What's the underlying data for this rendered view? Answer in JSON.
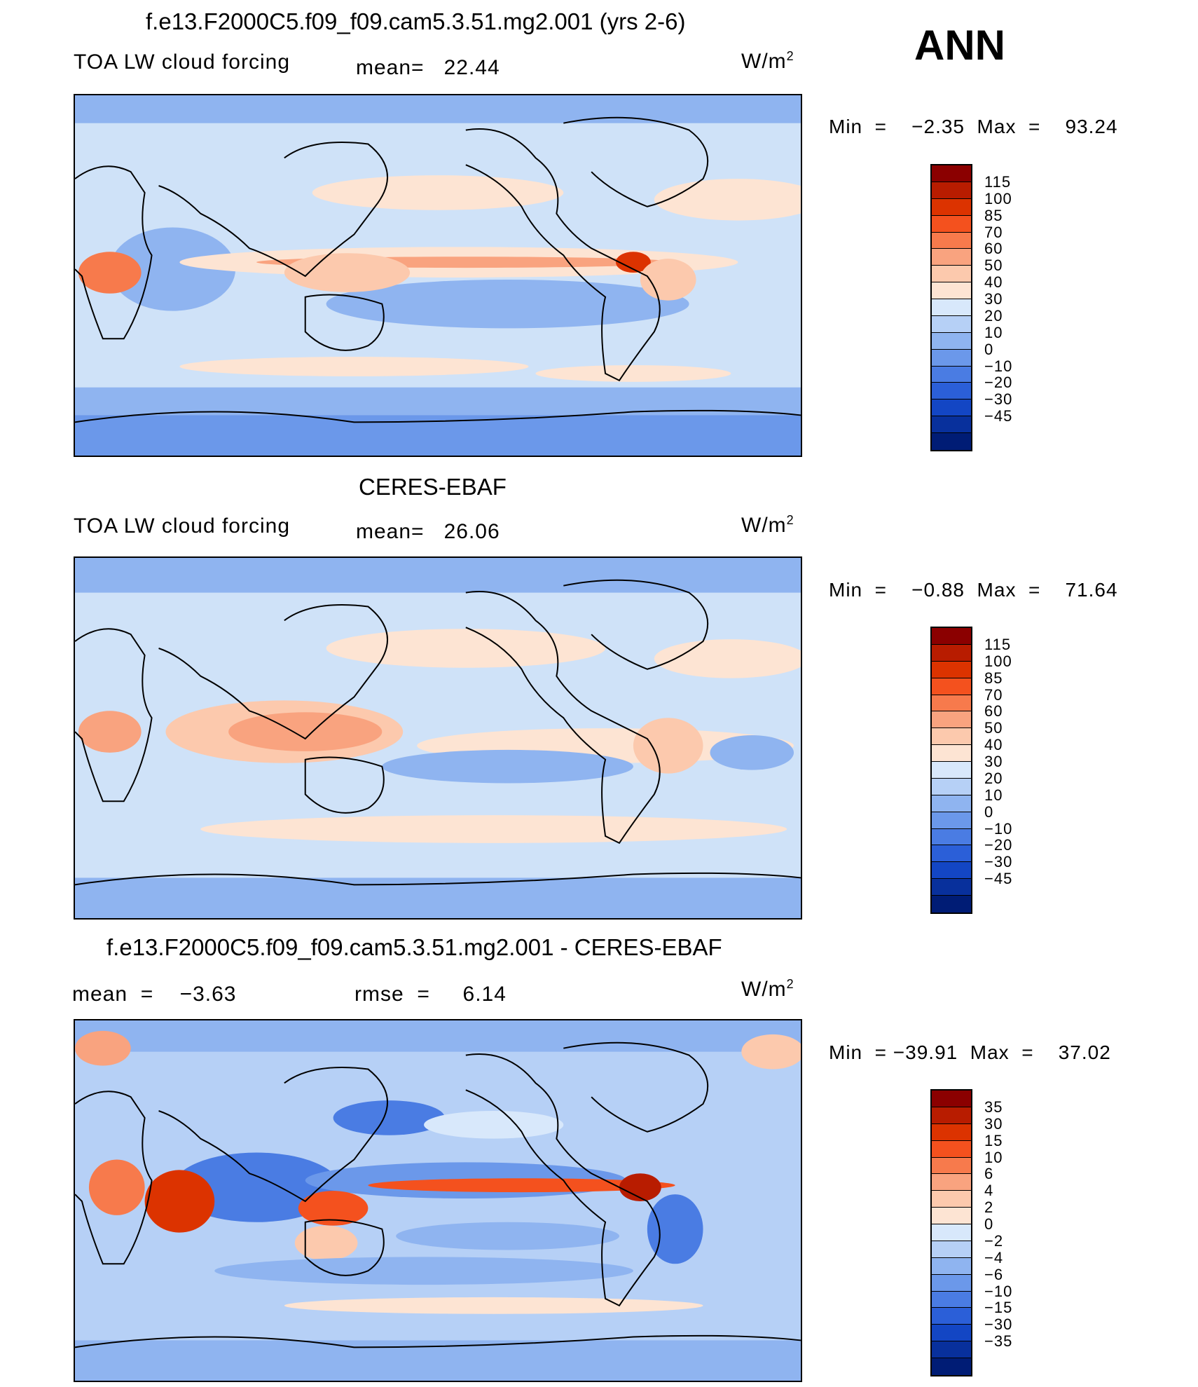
{
  "season": "ANN",
  "unit_prefix": "W/m",
  "unit_sup": "2",
  "panels": [
    {
      "title": "f.e13.F2000C5.f09_f09.cam5.3.51.mg2.001 (yrs 2-6)",
      "left_label": "TOA LW cloud forcing",
      "mid_label": "mean=   22.44",
      "minmax": "Min  =    −2.35  Max  =    93.24",
      "levels": [
        "115",
        "100",
        "85",
        "70",
        "60",
        "50",
        "40",
        "30",
        "20",
        "10",
        "0",
        "−10",
        "−20",
        "−30",
        "−45"
      ],
      "colors": [
        "#8b0000",
        "#b81c00",
        "#dc3300",
        "#f4511e",
        "#f77a4c",
        "#f9a37f",
        "#fcc9ad",
        "#fde4d3",
        "#d8e8fb",
        "#b6d0f6",
        "#8fb4f0",
        "#6b98ea",
        "#4a7ce3",
        "#2b5fd8",
        "#1346c4",
        "#08309c",
        "#001c75"
      ]
    },
    {
      "title": "CERES-EBAF",
      "left_label": "TOA LW cloud forcing",
      "mid_label": "mean=   26.06",
      "minmax": "Min  =    −0.88  Max  =    71.64",
      "levels": [
        "115",
        "100",
        "85",
        "70",
        "60",
        "50",
        "40",
        "30",
        "20",
        "10",
        "0",
        "−10",
        "−20",
        "−30",
        "−45"
      ],
      "colors": [
        "#8b0000",
        "#b81c00",
        "#dc3300",
        "#f4511e",
        "#f77a4c",
        "#f9a37f",
        "#fcc9ad",
        "#fde4d3",
        "#d8e8fb",
        "#b6d0f6",
        "#8fb4f0",
        "#6b98ea",
        "#4a7ce3",
        "#2b5fd8",
        "#1346c4",
        "#08309c",
        "#001c75"
      ]
    },
    {
      "title": "f.e13.F2000C5.f09_f09.cam5.3.51.mg2.001 - CERES-EBAF",
      "left_label": "mean  =    −3.63",
      "mid_label": "rmse  =     6.14",
      "minmax": "Min  = −39.91  Max  =    37.02",
      "levels": [
        "35",
        "30",
        "15",
        "10",
        "6",
        "4",
        "2",
        "0",
        "−2",
        "−4",
        "−6",
        "−10",
        "−15",
        "−30",
        "−35"
      ],
      "colors": [
        "#8b0000",
        "#b81c00",
        "#dc3300",
        "#f4511e",
        "#f77a4c",
        "#f9a37f",
        "#fcc9ad",
        "#fde4d3",
        "#d8e8fb",
        "#b6d0f6",
        "#8fb4f0",
        "#6b98ea",
        "#4a7ce3",
        "#2b5fd8",
        "#1346c4",
        "#08309c",
        "#001c75"
      ]
    }
  ]
}
